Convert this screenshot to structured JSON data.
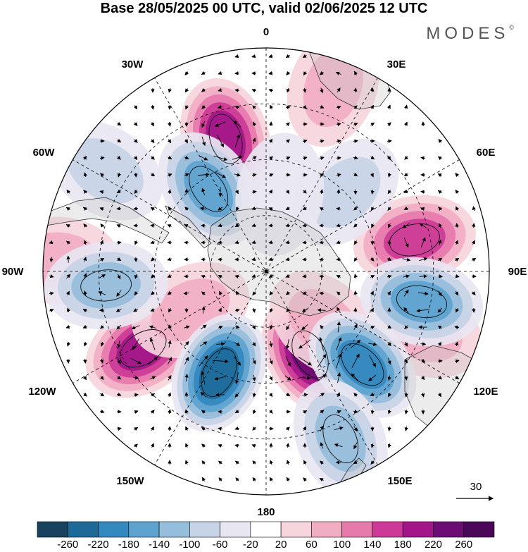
{
  "title": "Base 28/05/2025 00 UTC, valid 02/06/2025 12 UTC",
  "brand": {
    "name": "MODES",
    "mark": "©"
  },
  "map": {
    "projection": "south-polar-stereographic",
    "longitude_labels": [
      "0",
      "30E",
      "60E",
      "90E",
      "120E",
      "150E",
      "180",
      "150W",
      "120W",
      "90W",
      "60W",
      "30W"
    ],
    "vector_reference": "30"
  },
  "colorbar": {
    "labels": [
      "-260",
      "-220",
      "-180",
      "-140",
      "-100",
      "-60",
      "-20",
      "20",
      "60",
      "100",
      "140",
      "180",
      "220",
      "260"
    ],
    "colors": [
      "#18425e",
      "#1d6a99",
      "#3388bd",
      "#5ea3cf",
      "#95bddc",
      "#c7d3e6",
      "#e8e6f1",
      "#ffffff",
      "#f6d5dc",
      "#f1aec3",
      "#e67aad",
      "#cc3996",
      "#a3168a",
      "#6b0d74",
      "#4b0858"
    ]
  },
  "anomaly_centers": [
    {
      "lon": -17,
      "lat_r": 0.62,
      "value": 200
    },
    {
      "lon": 20,
      "lat_r": 0.88,
      "value": 80
    },
    {
      "lon": 78,
      "lat_r": 0.68,
      "value": 140
    },
    {
      "lon": 111,
      "lat_r": 0.75,
      "value": 90
    },
    {
      "lon": 152,
      "lat_r": 0.42,
      "value": 240
    },
    {
      "lon": 132,
      "lat_r": 0.35,
      "value": 90
    },
    {
      "lon": -122,
      "lat_r": 0.65,
      "value": 180
    },
    {
      "lon": -87,
      "lat_r": 0.93,
      "value": 80
    },
    {
      "lon": -117,
      "lat_r": 0.38,
      "value": 90
    },
    {
      "lon": -35,
      "lat_r": 0.45,
      "value": -140
    },
    {
      "lon": -58,
      "lat_r": 0.85,
      "value": -60
    },
    {
      "lon": -95,
      "lat_r": 0.72,
      "value": -100
    },
    {
      "lon": -155,
      "lat_r": 0.5,
      "value": -220
    },
    {
      "lon": 134,
      "lat_r": 0.6,
      "value": -200
    },
    {
      "lon": 101,
      "lat_r": 0.71,
      "value": -140
    },
    {
      "lon": 156,
      "lat_r": 0.82,
      "value": -120
    },
    {
      "lon": 45,
      "lat_r": 0.5,
      "value": -60
    },
    {
      "lon": 10,
      "lat_r": 0.35,
      "value": -40
    }
  ]
}
